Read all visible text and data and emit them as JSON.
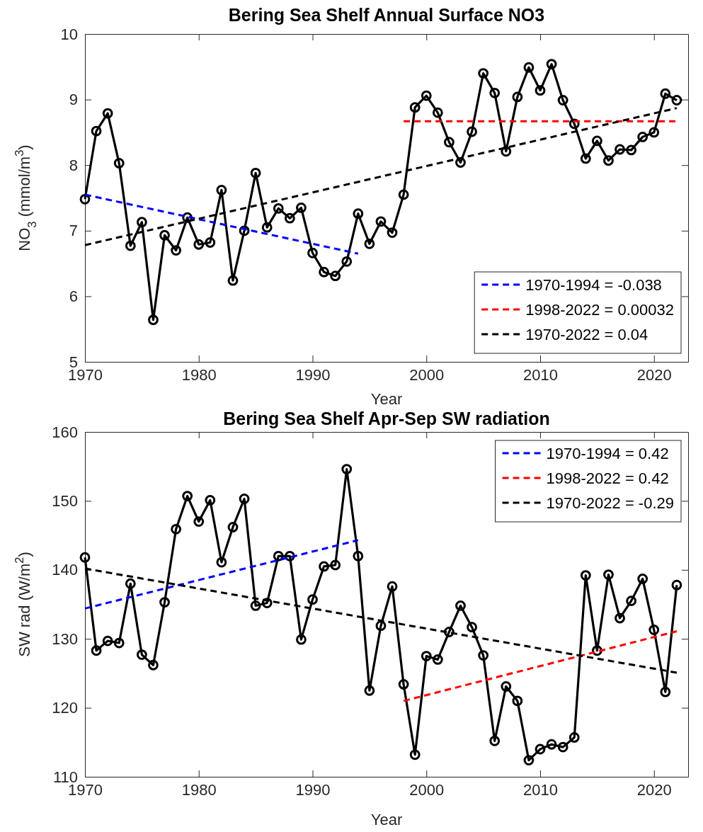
{
  "chart_data": [
    {
      "type": "line",
      "title": "Bering Sea Shelf Annual Surface NO3",
      "xlabel": "Year",
      "ylabel": "NO$_{3}$ (mmol/m$^{3}$)",
      "x": [
        1970,
        1971,
        1972,
        1973,
        1974,
        1975,
        1976,
        1977,
        1978,
        1979,
        1980,
        1981,
        1982,
        1983,
        1984,
        1985,
        1986,
        1987,
        1988,
        1989,
        1990,
        1991,
        1992,
        1993,
        1994,
        1995,
        1996,
        1997,
        1998,
        1999,
        2000,
        2001,
        2002,
        2003,
        2004,
        2005,
        2006,
        2007,
        2008,
        2009,
        2010,
        2011,
        2012,
        2013,
        2014,
        2015,
        2016,
        2017,
        2018,
        2019,
        2020,
        2021,
        2022
      ],
      "series": [
        {
          "color": "#000000",
          "marker": "circle",
          "line_style": "solid",
          "values": [
            7.48,
            8.52,
            8.79,
            8.03,
            6.77,
            7.13,
            5.64,
            6.93,
            6.7,
            7.2,
            6.79,
            6.82,
            7.62,
            6.24,
            7.0,
            7.88,
            7.05,
            7.34,
            7.19,
            7.35,
            6.66,
            6.37,
            6.31,
            6.53,
            7.26,
            6.8,
            7.14,
            6.97,
            7.55,
            8.88,
            9.06,
            8.8,
            8.35,
            8.04,
            8.51,
            9.4,
            9.1,
            8.21,
            9.04,
            9.49,
            9.14,
            9.54,
            8.99,
            8.63,
            8.1,
            8.37,
            8.07,
            8.24,
            8.23,
            8.43,
            8.5,
            9.09,
            8.99
          ]
        },
        {
          "name": "1970-1994 = -0.038",
          "color": "#0000ff",
          "marker": "none",
          "line_style": "dashed",
          "x": [
            1970,
            1994
          ],
          "values": [
            7.55,
            6.65
          ]
        },
        {
          "name": "1998-2022 = 0.00032",
          "color": "#ff0000",
          "marker": "none",
          "line_style": "dashed",
          "x": [
            1998,
            2022
          ],
          "values": [
            8.67,
            8.67
          ]
        },
        {
          "name": "1970-2022 = 0.04",
          "color": "#000000",
          "marker": "none",
          "line_style": "dashed",
          "x": [
            1970,
            2022
          ],
          "values": [
            6.78,
            8.87
          ]
        }
      ],
      "xlim": [
        1970,
        2023
      ],
      "xticks": [
        1970,
        1980,
        1990,
        2000,
        2010,
        2020
      ],
      "ylim": [
        5,
        10
      ],
      "yticks": [
        5,
        6,
        7,
        8,
        9,
        10
      ],
      "grid": false,
      "legend": "bottom right"
    },
    {
      "type": "line",
      "title": "Bering Sea Shelf Apr-Sep SW radiation",
      "xlabel": "Year",
      "ylabel": "SW rad (W/m$^{2}$)",
      "x": [
        1970,
        1971,
        1972,
        1973,
        1974,
        1975,
        1976,
        1977,
        1978,
        1979,
        1980,
        1981,
        1982,
        1983,
        1984,
        1985,
        1986,
        1987,
        1988,
        1989,
        1990,
        1991,
        1992,
        1993,
        1994,
        1995,
        1996,
        1997,
        1998,
        1999,
        2000,
        2001,
        2002,
        2003,
        2004,
        2005,
        2006,
        2007,
        2008,
        2009,
        2010,
        2011,
        2012,
        2013,
        2014,
        2015,
        2016,
        2017,
        2018,
        2019,
        2020,
        2021,
        2022
      ],
      "series": [
        {
          "color": "#000000",
          "marker": "circle",
          "line_style": "solid",
          "values": [
            141.8,
            128.3,
            129.7,
            129.4,
            138.0,
            127.7,
            126.2,
            135.3,
            145.9,
            150.7,
            147.0,
            150.1,
            141.1,
            146.2,
            150.3,
            134.8,
            135.2,
            142.0,
            142.0,
            129.9,
            135.7,
            140.5,
            140.7,
            154.6,
            142.0,
            122.5,
            131.9,
            137.6,
            123.4,
            113.2,
            127.5,
            127.0,
            131.0,
            134.8,
            131.7,
            127.6,
            115.2,
            123.1,
            121.0,
            112.4,
            114.0,
            114.7,
            114.3,
            115.7,
            139.2,
            128.3,
            139.3,
            133.0,
            135.5,
            138.7,
            131.3,
            122.3,
            137.8
          ]
        },
        {
          "name": "1970-1994 = 0.42",
          "color": "#0000ff",
          "marker": "none",
          "line_style": "dashed",
          "x": [
            1970,
            1994
          ],
          "values": [
            134.4,
            144.3
          ]
        },
        {
          "name": "1998-2022 = 0.42",
          "color": "#ff0000",
          "marker": "none",
          "line_style": "dashed",
          "x": [
            1998,
            2022
          ],
          "values": [
            121.0,
            131.1
          ]
        },
        {
          "name": "1970-2022 = -0.29",
          "color": "#000000",
          "marker": "none",
          "line_style": "dashed",
          "x": [
            1970,
            2022
          ],
          "values": [
            140.2,
            125.1
          ]
        }
      ],
      "xlim": [
        1970,
        2023
      ],
      "xticks": [
        1970,
        1980,
        1990,
        2000,
        2010,
        2020
      ],
      "ylim": [
        110,
        160
      ],
      "yticks": [
        110,
        120,
        130,
        140,
        150,
        160
      ],
      "grid": false,
      "legend": "top right"
    }
  ]
}
